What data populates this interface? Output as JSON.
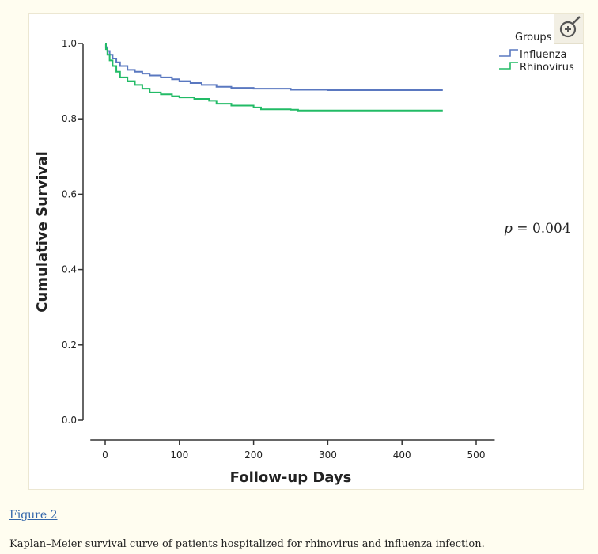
{
  "figure_link": "Figure 2",
  "caption": "Kaplan–Meier survival curve of patients hospitalized for rhinovirus and influenza infection.",
  "zoom_icon": "zoom-in-icon",
  "chart_data": {
    "type": "line",
    "step": true,
    "xlabel": "Follow-up Days",
    "ylabel": "Cumulative Survival",
    "xlim": [
      0,
      500
    ],
    "ylim": [
      0.0,
      1.0
    ],
    "x_ticks": [
      "0",
      "100",
      "200",
      "300",
      "400",
      "500"
    ],
    "y_ticks": [
      "0.0",
      "0.2",
      "0.4",
      "0.6",
      "0.8",
      "1.0"
    ],
    "grid": false,
    "legend_title": "Groups",
    "legend_position": "top-right",
    "annotation_italic": "p",
    "annotation_rest": " = 0.004",
    "series": [
      {
        "name": "Influenza",
        "color": "#5a78c0",
        "x": [
          0,
          1,
          3,
          6,
          10,
          15,
          20,
          30,
          40,
          50,
          60,
          75,
          90,
          100,
          115,
          130,
          150,
          170,
          200,
          250,
          300,
          350,
          400,
          455
        ],
        "y": [
          1.0,
          0.99,
          0.98,
          0.97,
          0.96,
          0.95,
          0.94,
          0.93,
          0.925,
          0.92,
          0.915,
          0.91,
          0.905,
          0.9,
          0.895,
          0.89,
          0.885,
          0.882,
          0.88,
          0.877,
          0.876,
          0.876,
          0.876,
          0.876
        ]
      },
      {
        "name": "Rhinovirus",
        "color": "#22bb66",
        "x": [
          0,
          1,
          3,
          6,
          10,
          15,
          20,
          30,
          40,
          50,
          60,
          75,
          90,
          100,
          120,
          140,
          150,
          170,
          200,
          210,
          250,
          260,
          300,
          400,
          455
        ],
        "y": [
          1.0,
          0.985,
          0.97,
          0.955,
          0.94,
          0.925,
          0.91,
          0.9,
          0.89,
          0.88,
          0.87,
          0.865,
          0.86,
          0.857,
          0.853,
          0.848,
          0.84,
          0.835,
          0.83,
          0.825,
          0.824,
          0.822,
          0.822,
          0.822,
          0.822
        ]
      }
    ]
  }
}
